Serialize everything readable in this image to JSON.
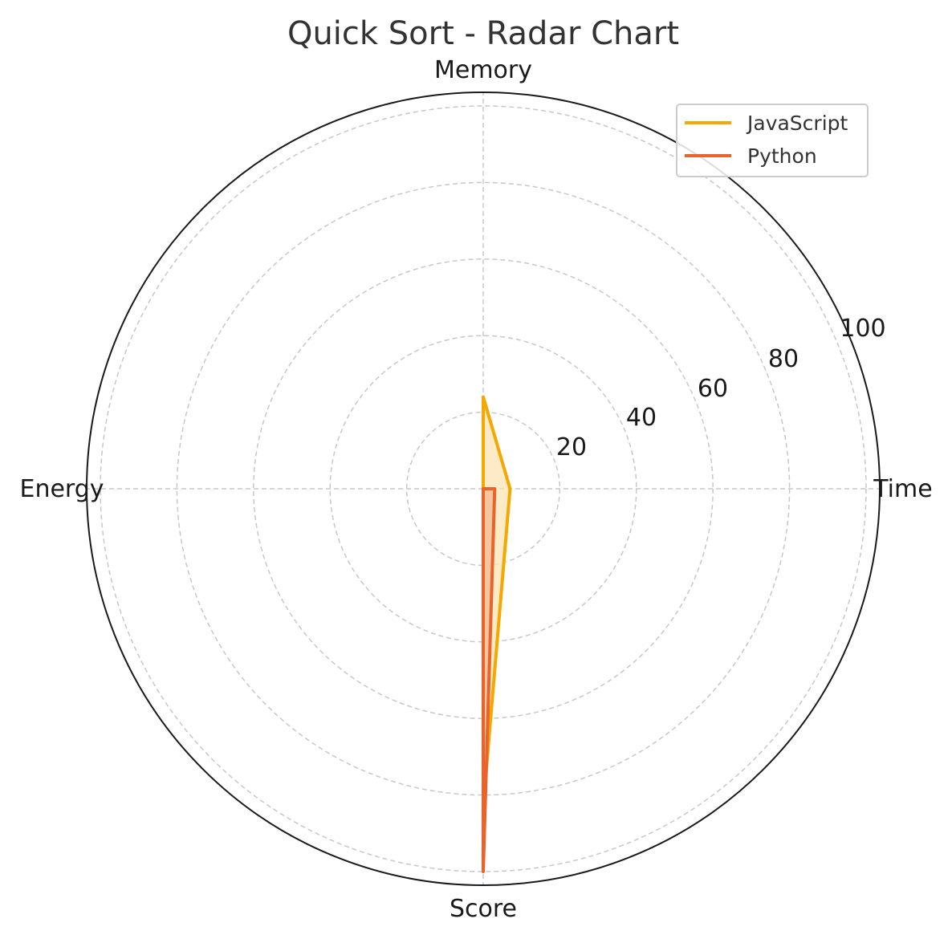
{
  "chart_data": {
    "type": "radar",
    "title": "Quick Sort - Radar Chart",
    "axes": [
      "Time",
      "Memory",
      "Energy",
      "Score"
    ],
    "r_ticks": [
      "20",
      "40",
      "60",
      "80",
      "100"
    ],
    "r_range": [
      0,
      100
    ],
    "grid": true,
    "legend_position": "top-right",
    "series": [
      {
        "name": "JavaScript",
        "values": [
          7,
          24,
          0,
          83
        ],
        "color": "#F5A800",
        "fill": "#FCE3B3"
      },
      {
        "name": "Python",
        "values": [
          3,
          0,
          0,
          100
        ],
        "color": "#E8642C",
        "fill": "#F5B990"
      }
    ]
  }
}
